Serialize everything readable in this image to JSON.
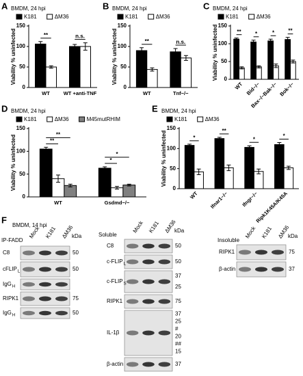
{
  "chart_data": [
    {
      "type": "bar",
      "panel": "A",
      "title": "BMDM, 24 hpi",
      "ylabel": "Viability % uninfected",
      "categories": [
        "WT",
        "WT +anti-TNF"
      ],
      "series": [
        {
          "name": "K181",
          "color": "#000000",
          "values": [
            106,
            100
          ],
          "errors": [
            6,
            5
          ]
        },
        {
          "name": "ΔM36",
          "color": "#ffffff",
          "values": [
            50,
            100
          ],
          "errors": [
            3,
            9
          ]
        }
      ],
      "ylim": [
        0,
        150
      ],
      "yticks": [
        0,
        50,
        100,
        150
      ],
      "annotations": [
        "**",
        "n.s."
      ]
    },
    {
      "type": "bar",
      "panel": "B",
      "title": "BMDM, 24 hpi",
      "ylabel": "Viability % uninfected",
      "categories": [
        "WT",
        "Tnf−/−"
      ],
      "series": [
        {
          "name": "K181",
          "color": "#000000",
          "values": [
            90,
            87
          ],
          "errors": [
            7,
            8
          ]
        },
        {
          "name": "ΔM36",
          "color": "#ffffff",
          "values": [
            44,
            72
          ],
          "errors": [
            4,
            6
          ]
        }
      ],
      "ylim": [
        0,
        150
      ],
      "yticks": [
        0,
        50,
        100,
        150
      ],
      "annotations": [
        "**",
        "n.s."
      ]
    },
    {
      "type": "bar",
      "panel": "C",
      "title": "BMDM, 24 hpi",
      "ylabel": "Viability % uninfected",
      "categories": [
        "WT",
        "Bid−/−",
        "Bax−/−Bak−/−",
        "Bok−/−"
      ],
      "series": [
        {
          "name": "K181",
          "color": "#000000",
          "values": [
            113,
            105,
            108,
            112
          ],
          "errors": [
            3,
            5,
            5,
            6
          ]
        },
        {
          "name": "ΔM36",
          "color": "#ffffff",
          "values": [
            32,
            35,
            38,
            50
          ],
          "errors": [
            3,
            3,
            5,
            4
          ]
        }
      ],
      "ylim": [
        0,
        150
      ],
      "yticks": [
        0,
        50,
        100,
        150
      ],
      "annotations": [
        "**",
        "*",
        "*",
        "**"
      ]
    },
    {
      "type": "bar",
      "panel": "D",
      "title": "BMDM, 24 hpi",
      "ylabel": "Viability % uninfected",
      "categories": [
        "WT",
        "Gsdmd−/−"
      ],
      "series": [
        {
          "name": "K181",
          "color": "#000000",
          "values": [
            105,
            63
          ],
          "errors": [
            4,
            3
          ]
        },
        {
          "name": "ΔM36",
          "color": "#ffffff",
          "values": [
            40,
            20
          ],
          "errors": [
            8,
            3
          ]
        },
        {
          "name": "M45mutRHIM",
          "color": "#808080",
          "values": [
            25,
            26
          ],
          "errors": [
            3,
            2
          ]
        }
      ],
      "ylim": [
        0,
        150
      ],
      "yticks": [
        0,
        50,
        100,
        150
      ],
      "annotations": [
        "**",
        "**",
        "*",
        "*"
      ]
    },
    {
      "type": "bar",
      "panel": "E",
      "title": "BMDM, 24 hpi",
      "ylabel": "Viability % uninfected",
      "categories": [
        "WT",
        "Ifnar1−/−",
        "Ifngr−/−",
        "Ripk1K45A/K45A"
      ],
      "series": [
        {
          "name": "K181",
          "color": "#000000",
          "values": [
            108,
            125,
            103,
            110
          ],
          "errors": [
            3,
            3,
            4,
            5
          ]
        },
        {
          "name": "ΔM36",
          "color": "#ffffff",
          "values": [
            42,
            52,
            43,
            52
          ],
          "errors": [
            7,
            7,
            6,
            4
          ]
        }
      ],
      "ylim": [
        0,
        150
      ],
      "yticks": [
        0,
        50,
        100,
        150
      ],
      "annotations": [
        "*",
        "**",
        "*",
        "*"
      ]
    }
  ],
  "blots": {
    "panel": "F",
    "title": "BMDM, 14 hpi",
    "groups": [
      {
        "label": "IP-FADD",
        "lanes": [
          "Mock",
          "K181",
          "ΔM36"
        ],
        "unit": "kDa",
        "rows": [
          {
            "name": "C8",
            "markers": [
              50
            ]
          },
          {
            "name": "cFLIP",
            "sub": "L",
            "markers": [
              50
            ]
          },
          {
            "name": "IgG",
            "sub": "H",
            "markers": []
          },
          {
            "name": "RIPK1",
            "markers": [
              75
            ]
          },
          {
            "name": "IgG",
            "sub": "H",
            "markers": [
              50
            ]
          }
        ]
      },
      {
        "label": "Soluble",
        "lanes": [
          "Mock",
          "K181",
          "ΔM36"
        ],
        "unit": "kDa",
        "rows": [
          {
            "name": "C8",
            "markers": [
              50
            ]
          },
          {
            "name": "c-FLIP",
            "sub": "L",
            "markers": [
              50
            ]
          },
          {
            "name": "c-FLIP",
            "sub": "S",
            "markers": [
              37,
              25
            ]
          },
          {
            "name": "RIPK1",
            "markers": [
              75
            ]
          },
          {
            "name": "IL-1β",
            "markers": [
              37,
              25,
              "#",
              20,
              "##",
              15
            ]
          },
          {
            "name": "β-actin",
            "markers": [
              37
            ]
          }
        ]
      },
      {
        "label": "Insoluble",
        "lanes": [
          "Mock",
          "K181",
          "ΔM36"
        ],
        "unit": "kDa",
        "rows": [
          {
            "name": "RIPK1",
            "markers": [
              75
            ]
          },
          {
            "name": "β-actin",
            "markers": [
              37
            ]
          }
        ]
      }
    ]
  }
}
